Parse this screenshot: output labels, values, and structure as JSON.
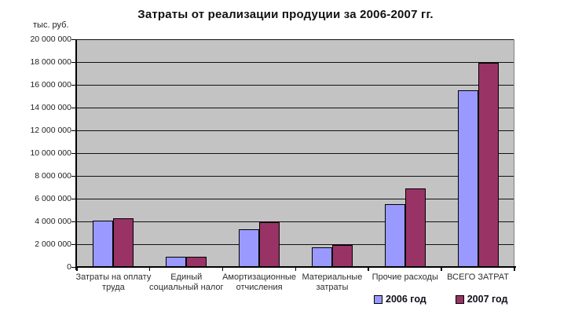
{
  "chart_data": {
    "type": "bar",
    "title": "Затраты от реализации продуции за 2006-2007 гг.",
    "ylabel": "тыс. руб.",
    "xlabel": "",
    "ylim": [
      0,
      20000000
    ],
    "ytick_step": 2000000,
    "yticks": [
      "0",
      "2 000 000",
      "4 000 000",
      "6 000 000",
      "8 000 000",
      "10 000 000",
      "12 000 000",
      "14 000 000",
      "16 000 000",
      "18 000 000",
      "20 000 000"
    ],
    "categories": [
      "Затраты на оплату труда",
      "Единый социальный налог",
      "Амортизационные отчисления",
      "Материальные затраты",
      "Прочие расходы",
      "ВСЕГО ЗАТРАТ"
    ],
    "category_lines": [
      [
        "Затраты на оплату",
        "труда"
      ],
      [
        "Единый",
        "социальный налог"
      ],
      [
        "Амортизационные",
        "отчисления"
      ],
      [
        "Материальные",
        "затраты"
      ],
      [
        "Прочие расходы"
      ],
      [
        "ВСЕГО ЗАТРАТ"
      ]
    ],
    "series": [
      {
        "name": "2006 год",
        "color": "#9999FF",
        "values": [
          4100000,
          900000,
          3300000,
          1700000,
          5500000,
          15500000
        ]
      },
      {
        "name": "2007 год",
        "color": "#993366",
        "values": [
          4300000,
          900000,
          3900000,
          1900000,
          6900000,
          17900000
        ]
      }
    ],
    "legend_position": "bottom-right",
    "grid": true,
    "plot_background": "#C3C3C3",
    "gridline_color": "#111111"
  }
}
